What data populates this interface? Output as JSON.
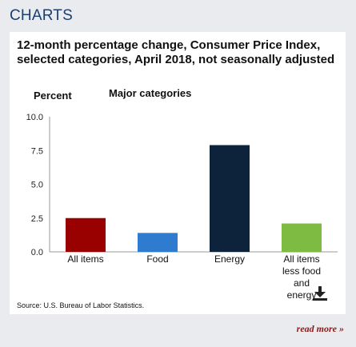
{
  "header": {
    "title": "CHARTS"
  },
  "chart_data": {
    "type": "bar",
    "title": "12-month percentage change, Consumer Price Index, selected categories, April 2018, not seasonally adjusted",
    "ylabel": "Percent",
    "subtitle": "Major categories",
    "categories": [
      "All items",
      "Food",
      "Energy",
      "All items less food and energy"
    ],
    "category_lines": [
      [
        "All items"
      ],
      [
        "Food"
      ],
      [
        "Energy"
      ],
      [
        "All items",
        "less food",
        "and",
        "energy"
      ]
    ],
    "values": [
      2.5,
      1.4,
      7.9,
      2.1
    ],
    "colors": [
      "#990000",
      "#2e7bcf",
      "#0d223b",
      "#7dbb42"
    ],
    "ylim": [
      0,
      10
    ],
    "yticks": [
      "0.0",
      "2.5",
      "5.0",
      "7.5",
      "10.0"
    ],
    "grid": false
  },
  "source": "Source: U.S. Bureau of Labor Statistics.",
  "icons": {
    "download": "download-icon"
  },
  "read_more": "read more »"
}
